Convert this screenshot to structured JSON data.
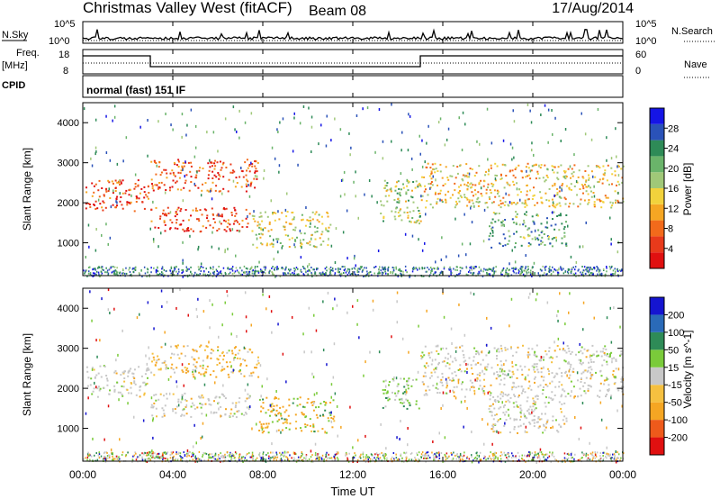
{
  "header": {
    "title": "Christmas Valley West (fitACF)",
    "beam": "Beam 08",
    "date": "17/Aug/2014"
  },
  "strip_labels": {
    "nsky": "N.Sky",
    "nsky_top": "10^5",
    "nsky_bottom": "10^0",
    "freq": "Freq.",
    "freq_unit": "[MHz]",
    "freq_top": "18",
    "freq_bottom": "8",
    "nsearch": "N.Search",
    "nave": "Nave",
    "right_top": "10^5",
    "right_bottom": "10^0",
    "nave_top": "60",
    "nave_bottom": "0",
    "cpid": "CPID",
    "cpid_value": "normal (fast) 151 IF"
  },
  "chart_data": [
    {
      "type": "heatmap",
      "panel": "power",
      "ylabel": "Slant Range [km]",
      "xlabel": "",
      "ylim": [
        180,
        4500
      ],
      "xlim": [
        0,
        24
      ],
      "yticks": [
        "4000",
        "3000",
        "2000",
        "1000"
      ],
      "colorbar": {
        "label": "Power [dB]",
        "ticks": [
          "28",
          "24",
          "20",
          "16",
          "12",
          "8",
          "4"
        ],
        "colors": [
          "#1515e6",
          "#2a52b8",
          "#2e8b57",
          "#6ab46a",
          "#a0c878",
          "#f2d23c",
          "#f5a623",
          "#f26a1b",
          "#e83a1b",
          "#e01010"
        ]
      },
      "regions": [
        {
          "t0": 0.1,
          "t1": 2.9,
          "r0": 1800,
          "r1": 2600,
          "level": 0.9
        },
        {
          "t0": 3.0,
          "t1": 7.8,
          "r0": 2300,
          "r1": 3100,
          "level": 0.85
        },
        {
          "t0": 3.0,
          "t1": 7.5,
          "r0": 1300,
          "r1": 1900,
          "level": 0.9
        },
        {
          "t0": 7.5,
          "t1": 11.0,
          "r0": 900,
          "r1": 1800,
          "level": 0.5
        },
        {
          "t0": 13.2,
          "t1": 15.0,
          "r0": 1500,
          "r1": 2600,
          "level": 0.45
        },
        {
          "t0": 15.0,
          "t1": 24.0,
          "r0": 1900,
          "r1": 3000,
          "level": 0.6
        },
        {
          "t0": 18.0,
          "t1": 21.5,
          "r0": 900,
          "r1": 1800,
          "level": 0.3
        }
      ]
    },
    {
      "type": "heatmap",
      "panel": "velocity",
      "ylabel": "Slant Range [km]",
      "xlabel": "Time UT",
      "ylim": [
        180,
        4500
      ],
      "xlim": [
        0,
        24
      ],
      "xticks": [
        "00:00",
        "04:00",
        "08:00",
        "12:00",
        "16:00",
        "20:00",
        "00:00"
      ],
      "yticks": [
        "4000",
        "3000",
        "2000",
        "1000"
      ],
      "colorbar": {
        "label": "Velocity [m s^-1]",
        "ticks": [
          "200",
          "100",
          "50",
          "15",
          "-15",
          "-50",
          "-100",
          "-200"
        ],
        "colors": [
          "#1515d0",
          "#2a6ab8",
          "#2e8b57",
          "#7acb3a",
          "#c8c8c8",
          "#f5c040",
          "#f5a623",
          "#ee5a1b",
          "#e01010"
        ]
      },
      "regions": [
        {
          "t0": 0.1,
          "t1": 2.9,
          "r0": 1800,
          "r1": 2600,
          "vel": "gray"
        },
        {
          "t0": 3.0,
          "t1": 7.8,
          "r0": 2300,
          "r1": 3100,
          "vel": "mixed-orange"
        },
        {
          "t0": 3.0,
          "t1": 7.5,
          "r0": 1300,
          "r1": 1900,
          "vel": "gray"
        },
        {
          "t0": 7.8,
          "t1": 11.2,
          "r0": 900,
          "r1": 1800,
          "vel": "orange-green"
        },
        {
          "t0": 13.3,
          "t1": 15.0,
          "r0": 1500,
          "r1": 2300,
          "vel": "green"
        },
        {
          "t0": 15.0,
          "t1": 24.0,
          "r0": 1800,
          "r1": 3100,
          "vel": "gray"
        },
        {
          "t0": 18.0,
          "t1": 21.5,
          "r0": 900,
          "r1": 1800,
          "vel": "gray"
        }
      ]
    }
  ]
}
